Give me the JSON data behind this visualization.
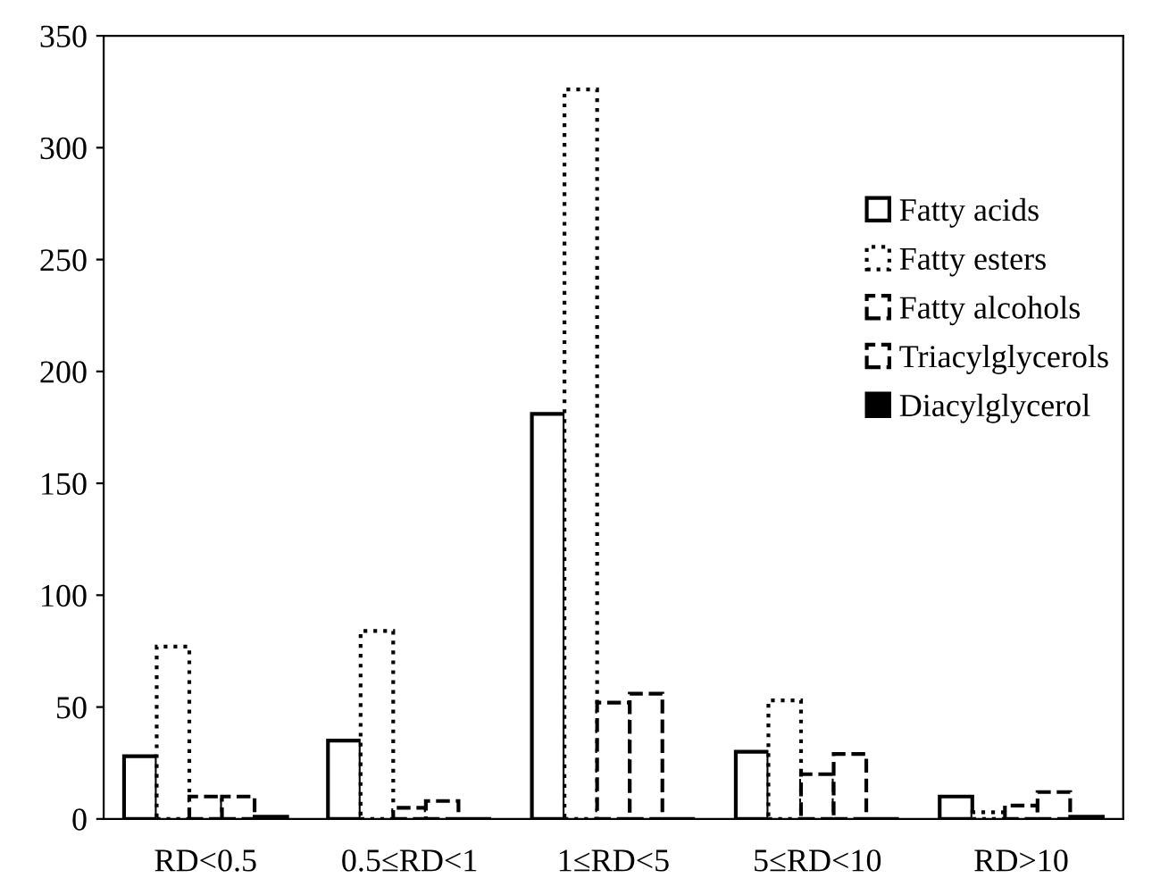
{
  "chart_data": {
    "type": "bar",
    "categories": [
      "RD<0.5",
      "0.5≤RD<1",
      "1≤RD<5",
      "5≤RD<10",
      "RD>10"
    ],
    "series": [
      {
        "name": "Fatty acids",
        "color": "#ffffff",
        "line_style": "solid",
        "values": [
          28,
          35,
          181,
          30,
          10
        ]
      },
      {
        "name": "Fatty esters",
        "color": "#ffffff",
        "line_style": "dotted",
        "values": [
          77,
          84,
          326,
          53,
          3
        ]
      },
      {
        "name": "Fatty alcohols",
        "color": "#ffffff",
        "line_style": "dashed",
        "values": [
          10,
          5,
          52,
          20,
          6
        ]
      },
      {
        "name": "Triacylglycerols",
        "color": "#ffffff",
        "line_style": "dashed",
        "values": [
          10,
          8,
          56,
          29,
          12
        ]
      },
      {
        "name": "Diacylglycerol",
        "color": "#000000",
        "line_style": "solid",
        "values": [
          1,
          0,
          0,
          0,
          1
        ]
      }
    ],
    "ylim": [
      0,
      350
    ],
    "yticks": [
      0,
      50,
      100,
      150,
      200,
      250,
      300,
      350
    ],
    "grid": false,
    "legend": "top right"
  }
}
